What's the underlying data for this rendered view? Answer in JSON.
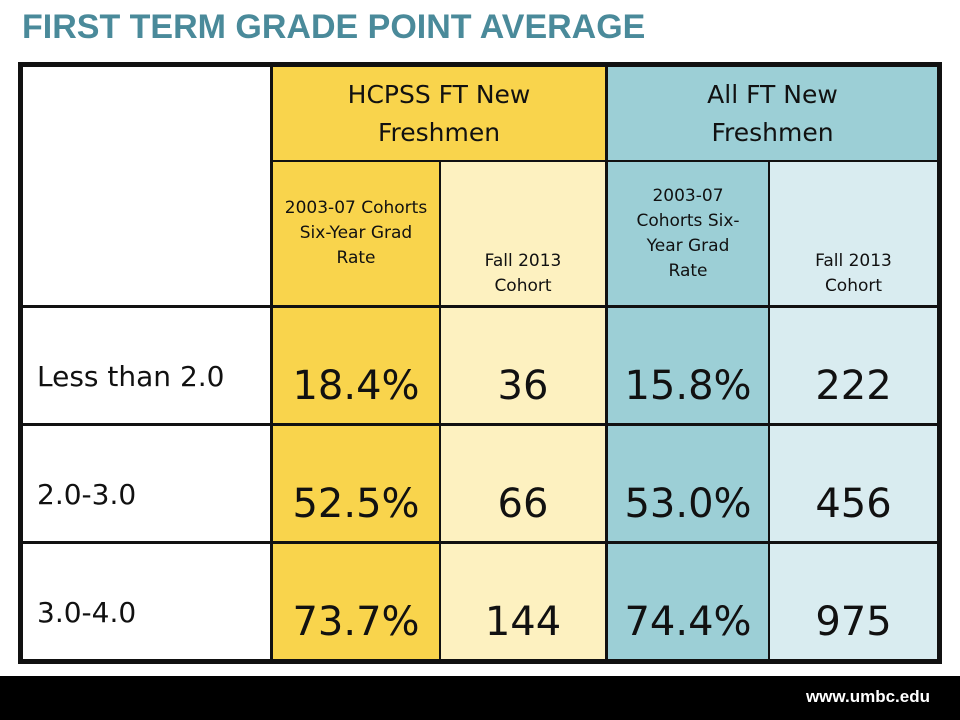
{
  "title": "FIRST TERM GRADE POINT AVERAGE",
  "table": {
    "group_headers": [
      "HCPSS FT New Freshmen",
      "All FT New Freshmen"
    ],
    "sub_headers": [
      "2003-07 Cohorts Six-Year Grad Rate",
      "Fall 2013 Cohort",
      "2003-07 Cohorts Six-Year Grad Rate",
      "Fall 2013 Cohort"
    ],
    "rows": [
      {
        "label": "Less than 2.0",
        "values": [
          "18.4%",
          "36",
          "15.8%",
          "222"
        ]
      },
      {
        "label": "2.0-3.0",
        "values": [
          "52.5%",
          "66",
          "53.0%",
          "456"
        ]
      },
      {
        "label": "3.0-4.0",
        "values": [
          "73.7%",
          "144",
          "74.4%",
          "975"
        ]
      }
    ]
  },
  "footer": {
    "url": "www.umbc.edu"
  },
  "colors": {
    "title": "#4a8a9a",
    "hcpss_dark": "#f9d44c",
    "hcpss_light": "#fdf1c0",
    "all_dark": "#9ccfd6",
    "all_light": "#d9ecf0"
  }
}
